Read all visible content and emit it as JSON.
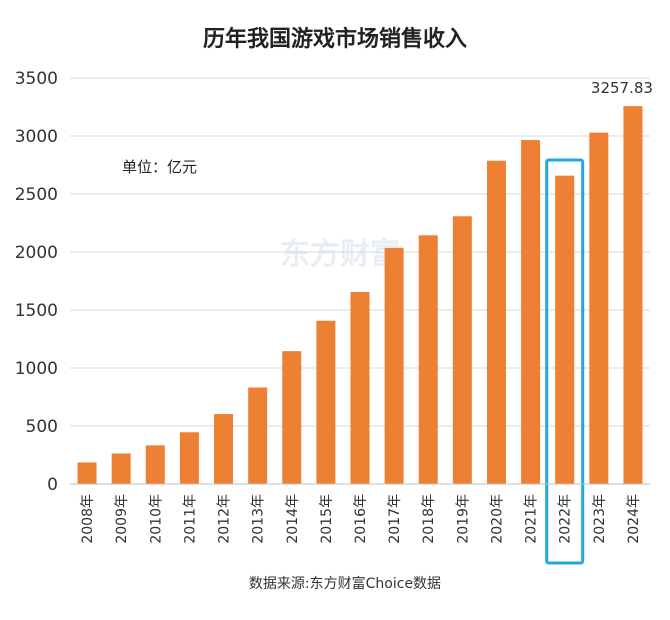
{
  "chart_data": {
    "type": "bar",
    "title": "历年我国游戏市场销售收入",
    "unit_label": "单位：亿元",
    "source": "数据来源:东方财富Choice数据",
    "watermark": "东方财富",
    "categories": [
      "2008年",
      "2009年",
      "2010年",
      "2011年",
      "2012年",
      "2013年",
      "2014年",
      "2015年",
      "2016年",
      "2017年",
      "2018年",
      "2019年",
      "2020年",
      "2021年",
      "2022年",
      "2023年",
      "2024年"
    ],
    "values": [
      186,
      263,
      333,
      446,
      603,
      832,
      1145,
      1407,
      1655,
      2036,
      2144,
      2308,
      2787,
      2965,
      2658,
      3029,
      3257.83
    ],
    "ylim": [
      0,
      3500
    ],
    "yticks": [
      0,
      500,
      1000,
      1500,
      2000,
      2500,
      3000,
      3500
    ],
    "grid": true,
    "bar_color": "#ee8033",
    "highlight_category": "2022年",
    "highlight_color": "#1fa9e0",
    "labeled_points": [
      {
        "category": "2024年",
        "label": "3257.83"
      }
    ],
    "xlabel": "",
    "ylabel": ""
  }
}
